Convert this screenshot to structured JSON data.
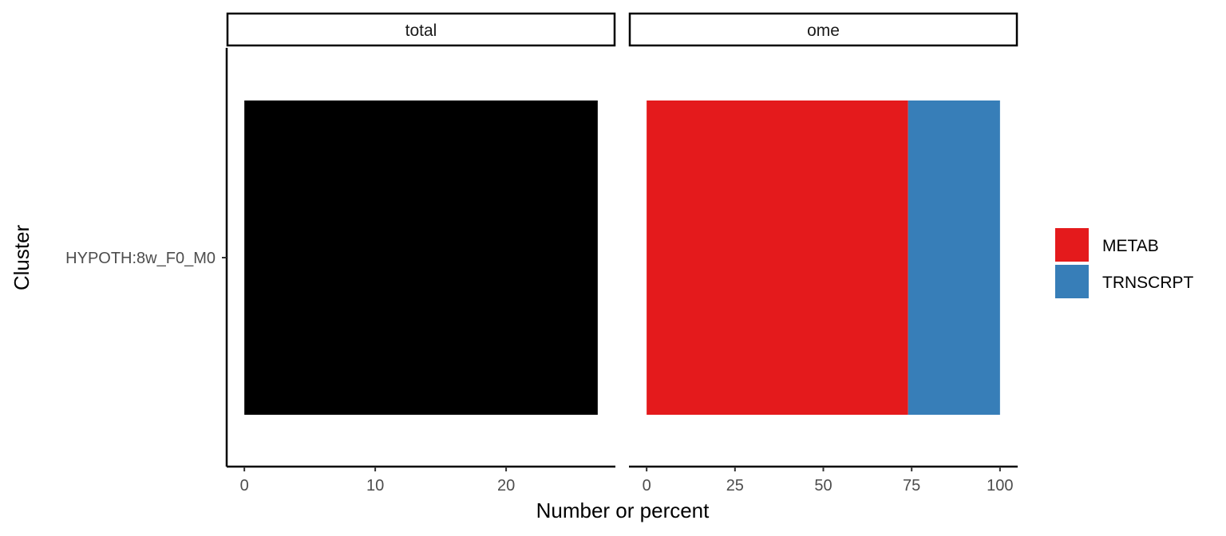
{
  "chart_data": {
    "type": "bar",
    "orientation": "horizontal",
    "xlabel": "Number or percent",
    "ylabel": "Cluster",
    "categories": [
      "HYPOTH:8w_F0_M0"
    ],
    "facets": [
      {
        "label": "total",
        "xlim": [
          -1.35,
          28.35
        ],
        "xticks": [
          0,
          10,
          20
        ],
        "series": [
          {
            "name": "",
            "color": "#000000",
            "values": [
              27
            ]
          }
        ]
      },
      {
        "label": "ome",
        "xlim": [
          -5,
          105
        ],
        "xticks": [
          0,
          25,
          50,
          75,
          100
        ],
        "stacked": true,
        "series": [
          {
            "name": "METAB",
            "color": "#E41A1C",
            "values": [
              74
            ]
          },
          {
            "name": "TRNSCRPT",
            "color": "#377EB8",
            "values": [
              26
            ]
          }
        ]
      }
    ],
    "legend": {
      "position": "right",
      "items": [
        {
          "label": "METAB",
          "color": "#E41A1C"
        },
        {
          "label": "TRNSCRPT",
          "color": "#377EB8"
        }
      ]
    },
    "grid": false
  }
}
